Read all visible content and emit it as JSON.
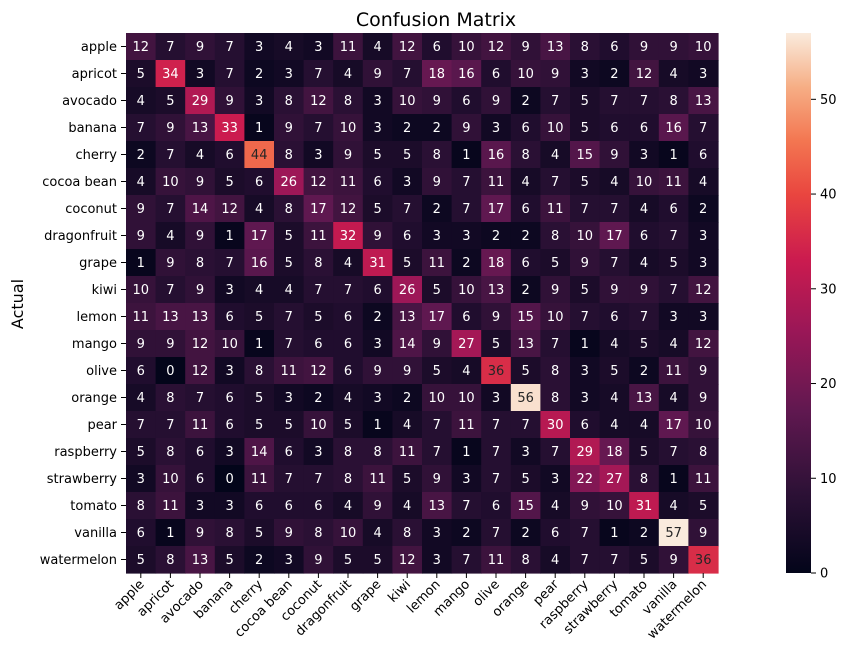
{
  "chart_data": {
    "type": "heatmap",
    "title": "Confusion Matrix",
    "ylabel": "Actual",
    "xlabel": "",
    "categories": [
      "apple",
      "apricot",
      "avocado",
      "banana",
      "cherry",
      "cocoa bean",
      "coconut",
      "dragonfruit",
      "grape",
      "kiwi",
      "lemon",
      "mango",
      "olive",
      "orange",
      "pear",
      "raspberry",
      "strawberry",
      "tomato",
      "vanilla",
      "watermelon"
    ],
    "values": [
      [
        12,
        7,
        9,
        7,
        3,
        4,
        3,
        11,
        4,
        12,
        6,
        10,
        12,
        9,
        13,
        8,
        6,
        9,
        9,
        10
      ],
      [
        5,
        34,
        3,
        7,
        2,
        3,
        7,
        4,
        9,
        7,
        18,
        16,
        6,
        10,
        9,
        3,
        2,
        12,
        4,
        3
      ],
      [
        4,
        5,
        29,
        9,
        3,
        8,
        12,
        8,
        3,
        10,
        9,
        6,
        9,
        2,
        7,
        5,
        7,
        7,
        8,
        13
      ],
      [
        7,
        9,
        13,
        33,
        1,
        9,
        7,
        10,
        3,
        2,
        2,
        9,
        3,
        6,
        10,
        5,
        6,
        6,
        16,
        7
      ],
      [
        2,
        7,
        4,
        6,
        44,
        8,
        3,
        9,
        5,
        5,
        8,
        1,
        16,
        8,
        4,
        15,
        9,
        3,
        1,
        6
      ],
      [
        4,
        10,
        9,
        5,
        6,
        26,
        12,
        11,
        6,
        3,
        9,
        7,
        11,
        4,
        7,
        5,
        4,
        10,
        11,
        4
      ],
      [
        9,
        7,
        14,
        12,
        4,
        8,
        17,
        12,
        5,
        7,
        2,
        7,
        17,
        6,
        11,
        7,
        7,
        4,
        6,
        2
      ],
      [
        9,
        4,
        9,
        1,
        17,
        5,
        11,
        32,
        9,
        6,
        3,
        3,
        2,
        2,
        8,
        10,
        17,
        6,
        7,
        3
      ],
      [
        1,
        9,
        8,
        7,
        16,
        5,
        8,
        4,
        31,
        5,
        11,
        2,
        18,
        6,
        5,
        9,
        7,
        4,
        5,
        3
      ],
      [
        10,
        7,
        9,
        3,
        4,
        4,
        7,
        7,
        6,
        26,
        5,
        10,
        13,
        2,
        9,
        5,
        9,
        9,
        7,
        12
      ],
      [
        11,
        13,
        13,
        6,
        5,
        7,
        5,
        6,
        2,
        13,
        17,
        6,
        9,
        15,
        10,
        7,
        6,
        7,
        3,
        3
      ],
      [
        9,
        9,
        12,
        10,
        1,
        7,
        6,
        6,
        3,
        14,
        9,
        27,
        5,
        13,
        7,
        1,
        4,
        5,
        4,
        12
      ],
      [
        6,
        0,
        12,
        3,
        8,
        11,
        12,
        6,
        9,
        9,
        5,
        4,
        36,
        5,
        8,
        3,
        5,
        2,
        11,
        9
      ],
      [
        4,
        8,
        7,
        6,
        5,
        3,
        2,
        4,
        3,
        2,
        10,
        10,
        3,
        56,
        8,
        3,
        4,
        13,
        4,
        9
      ],
      [
        7,
        7,
        11,
        6,
        5,
        5,
        10,
        5,
        1,
        4,
        7,
        11,
        7,
        7,
        30,
        6,
        4,
        4,
        17,
        10
      ],
      [
        5,
        8,
        6,
        3,
        14,
        6,
        3,
        8,
        8,
        11,
        7,
        1,
        7,
        3,
        7,
        29,
        18,
        5,
        7,
        8
      ],
      [
        3,
        10,
        6,
        0,
        11,
        7,
        7,
        8,
        11,
        5,
        9,
        3,
        7,
        5,
        3,
        22,
        27,
        8,
        1,
        11
      ],
      [
        8,
        11,
        3,
        3,
        6,
        6,
        6,
        4,
        9,
        4,
        13,
        7,
        6,
        15,
        4,
        9,
        10,
        31,
        4,
        5
      ],
      [
        6,
        1,
        9,
        8,
        5,
        9,
        8,
        10,
        4,
        8,
        3,
        2,
        7,
        2,
        6,
        7,
        1,
        2,
        57,
        9
      ],
      [
        5,
        8,
        13,
        5,
        2,
        3,
        9,
        5,
        5,
        12,
        3,
        7,
        11,
        8,
        4,
        7,
        7,
        5,
        9,
        36
      ]
    ],
    "colorbar": {
      "min": 0,
      "max": 57,
      "ticks": [
        0,
        10,
        20,
        30,
        40,
        50
      ]
    },
    "colormap": "rocket",
    "grid": false
  }
}
